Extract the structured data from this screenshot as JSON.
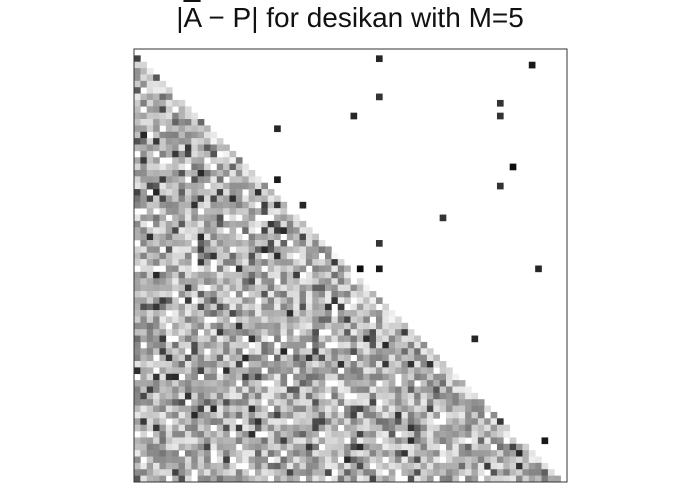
{
  "chart_data": {
    "type": "heatmap",
    "title": "|A̅ − P| for desikan with M=5",
    "title_parts": {
      "open": "|",
      "matrix": "A",
      "rest": " − P| for desikan with M=5"
    },
    "n": 68,
    "colormap": "greys",
    "value_range": [
      0,
      1
    ],
    "lower_triangle": "dense noisy grey values, mostly light to mid grey (approx 0.05-0.6)",
    "upper_triangle_cells": [
      {
        "row": 1,
        "col": 38,
        "value": 0.85
      },
      {
        "row": 2,
        "col": 62,
        "value": 0.9
      },
      {
        "row": 7,
        "col": 38,
        "value": 0.8
      },
      {
        "row": 8,
        "col": 57,
        "value": 0.8
      },
      {
        "row": 10,
        "col": 34,
        "value": 0.85
      },
      {
        "row": 10,
        "col": 57,
        "value": 0.8
      },
      {
        "row": 12,
        "col": 22,
        "value": 0.85
      },
      {
        "row": 18,
        "col": 59,
        "value": 0.95
      },
      {
        "row": 20,
        "col": 22,
        "value": 0.9
      },
      {
        "row": 21,
        "col": 57,
        "value": 0.8
      },
      {
        "row": 24,
        "col": 26,
        "value": 0.85
      },
      {
        "row": 26,
        "col": 48,
        "value": 0.8
      },
      {
        "row": 30,
        "col": 38,
        "value": 0.8
      },
      {
        "row": 34,
        "col": 35,
        "value": 0.95
      },
      {
        "row": 34,
        "col": 38,
        "value": 0.9
      },
      {
        "row": 34,
        "col": 63,
        "value": 0.85
      },
      {
        "row": 45,
        "col": 53,
        "value": 0.85
      },
      {
        "row": 61,
        "col": 64,
        "value": 0.9
      }
    ]
  }
}
